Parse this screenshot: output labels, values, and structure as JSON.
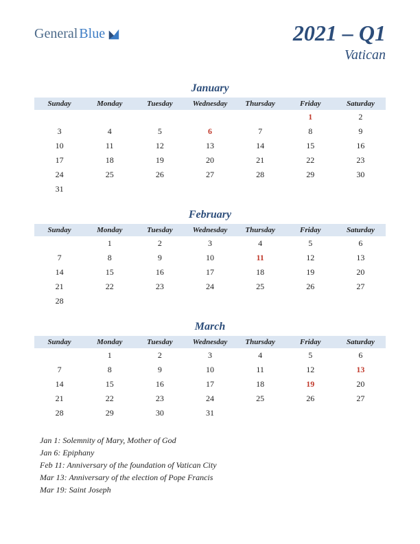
{
  "logo": {
    "part1": "General",
    "part2": "Blue"
  },
  "title": "2021 – Q1",
  "subtitle": "Vatican",
  "day_headers": [
    "Sunday",
    "Monday",
    "Tuesday",
    "Wednesday",
    "Thursday",
    "Friday",
    "Saturday"
  ],
  "colors": {
    "header_bg": "#dce6f2",
    "title_color": "#2c4d7a",
    "holiday_color": "#c0392b",
    "text_color": "#222222",
    "background": "#ffffff"
  },
  "months": [
    {
      "name": "January",
      "weeks": [
        [
          "",
          "",
          "",
          "",
          "",
          "1",
          "2"
        ],
        [
          "3",
          "4",
          "5",
          "6",
          "7",
          "8",
          "9"
        ],
        [
          "10",
          "11",
          "12",
          "13",
          "14",
          "15",
          "16"
        ],
        [
          "17",
          "18",
          "19",
          "20",
          "21",
          "22",
          "23"
        ],
        [
          "24",
          "25",
          "26",
          "27",
          "28",
          "29",
          "30"
        ],
        [
          "31",
          "",
          "",
          "",
          "",
          "",
          ""
        ]
      ],
      "holidays": [
        1,
        6
      ]
    },
    {
      "name": "February",
      "weeks": [
        [
          "",
          "1",
          "2",
          "3",
          "4",
          "5",
          "6"
        ],
        [
          "7",
          "8",
          "9",
          "10",
          "11",
          "12",
          "13"
        ],
        [
          "14",
          "15",
          "16",
          "17",
          "18",
          "19",
          "20"
        ],
        [
          "21",
          "22",
          "23",
          "24",
          "25",
          "26",
          "27"
        ],
        [
          "28",
          "",
          "",
          "",
          "",
          "",
          ""
        ]
      ],
      "holidays": [
        11
      ]
    },
    {
      "name": "March",
      "weeks": [
        [
          "",
          "1",
          "2",
          "3",
          "4",
          "5",
          "6"
        ],
        [
          "7",
          "8",
          "9",
          "10",
          "11",
          "12",
          "13"
        ],
        [
          "14",
          "15",
          "16",
          "17",
          "18",
          "19",
          "20"
        ],
        [
          "21",
          "22",
          "23",
          "24",
          "25",
          "26",
          "27"
        ],
        [
          "28",
          "29",
          "30",
          "31",
          "",
          "",
          ""
        ]
      ],
      "holidays": [
        13,
        19
      ]
    }
  ],
  "holiday_notes": [
    "Jan 1: Solemnity of Mary, Mother of God",
    "Jan 6: Epiphany",
    "Feb 11: Anniversary of the foundation of Vatican City",
    "Mar 13: Anniversary of the election of Pope Francis",
    "Mar 19: Saint Joseph"
  ]
}
